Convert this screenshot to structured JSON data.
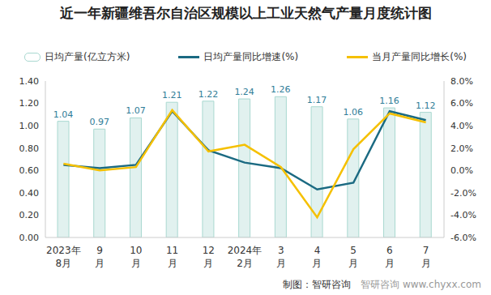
{
  "chart_data": {
    "type": "combo",
    "title": "近一年新疆维吾尔自治区规模以上工业天然气产量月度统计图",
    "source": "制图：智研咨询",
    "watermark": "智研咨询 www.chyxx.com",
    "categories": [
      "2023年8月",
      "9月",
      "10月",
      "11月",
      "12月",
      "2024年2月",
      "3月",
      "4月",
      "5月",
      "6月",
      "7月"
    ],
    "series": [
      {
        "name": "日均产量(亿立方米)",
        "type": "bar",
        "color": "#a9d8d0",
        "values": [
          1.04,
          0.97,
          1.07,
          1.21,
          1.22,
          1.24,
          1.26,
          1.17,
          1.06,
          1.16,
          1.12
        ]
      },
      {
        "name": "日均产量同比增速(%)",
        "type": "line",
        "axis": "y2",
        "color": "#1b6a82",
        "values": [
          0.5,
          0.2,
          0.5,
          5.3,
          1.8,
          0.7,
          0.2,
          -1.7,
          -1.1,
          5.3,
          4.5
        ]
      },
      {
        "name": "当月产量同比增长(%)",
        "type": "line",
        "axis": "y2",
        "color": "#f5c000",
        "values": [
          0.6,
          0.0,
          0.3,
          5.4,
          1.7,
          2.3,
          0.3,
          -4.2,
          1.9,
          5.1,
          4.3
        ]
      }
    ],
    "data_labels": true,
    "ylim": [
      0,
      1.4
    ],
    "yticks": [
      {
        "value": 0,
        "label": "0.00"
      },
      {
        "value": 0.2,
        "label": "0.20"
      },
      {
        "value": 0.4,
        "label": "0.40"
      },
      {
        "value": 0.6,
        "label": "0.60"
      },
      {
        "value": 0.8,
        "label": "0.80"
      },
      {
        "value": 1,
        "label": "1.00"
      },
      {
        "value": 1.2,
        "label": "1.20"
      },
      {
        "value": 1.4,
        "label": "1.40"
      }
    ],
    "y2lim": [
      -6,
      8
    ],
    "y2ticks": [
      {
        "value": -6,
        "label": "-6.0%"
      },
      {
        "value": -4,
        "label": "-4.0%"
      },
      {
        "value": -2,
        "label": "-2.0%"
      },
      {
        "value": 0,
        "label": "0.0%"
      },
      {
        "value": 2,
        "label": "2.0%"
      },
      {
        "value": 4,
        "label": "4.0%"
      },
      {
        "value": 6,
        "label": "6.0%"
      },
      {
        "value": 8,
        "label": "8.0%"
      }
    ],
    "grid": false
  }
}
